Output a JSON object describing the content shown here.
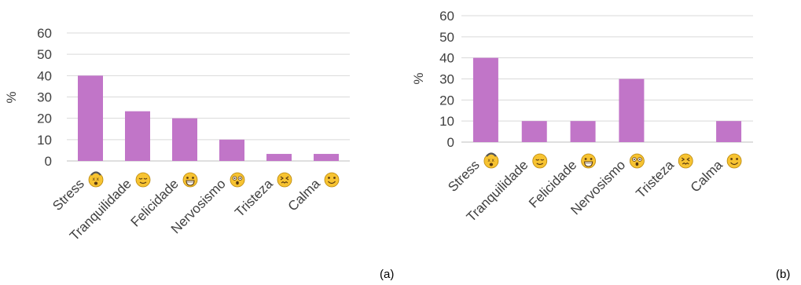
{
  "chart_data": [
    {
      "type": "bar",
      "panel_label": "(a)",
      "ylabel": "%",
      "ylim": [
        0,
        60
      ],
      "yticks": [
        0,
        10,
        20,
        30,
        40,
        50,
        60
      ],
      "grid": true,
      "bar_color": "#C175C8",
      "categories": [
        "Stress",
        "Tranquilidade",
        "Felicidade",
        "Nervosismo",
        "Tristeza",
        "Calma"
      ],
      "category_icons": [
        "dizzy-face-icon",
        "relieved-face-icon",
        "grinning-face-icon",
        "surprised-face-icon",
        "confounded-face-icon",
        "smiling-face-icon"
      ],
      "values": [
        40,
        23.3,
        20,
        10,
        3.3,
        3.3
      ]
    },
    {
      "type": "bar",
      "panel_label": "(b)",
      "ylabel": "%",
      "ylim": [
        0,
        60
      ],
      "yticks": [
        0,
        10,
        20,
        30,
        40,
        50,
        60
      ],
      "grid": true,
      "bar_color": "#C175C8",
      "categories": [
        "Stress",
        "Tranquilidade",
        "Felicidade",
        "Nervosismo",
        "Tristeza",
        "Calma"
      ],
      "category_icons": [
        "dizzy-face-icon",
        "relieved-face-icon",
        "grinning-face-icon",
        "surprised-face-icon",
        "confounded-face-icon",
        "smiling-face-icon"
      ],
      "values": [
        40,
        10,
        10,
        30,
        0,
        10
      ]
    }
  ]
}
